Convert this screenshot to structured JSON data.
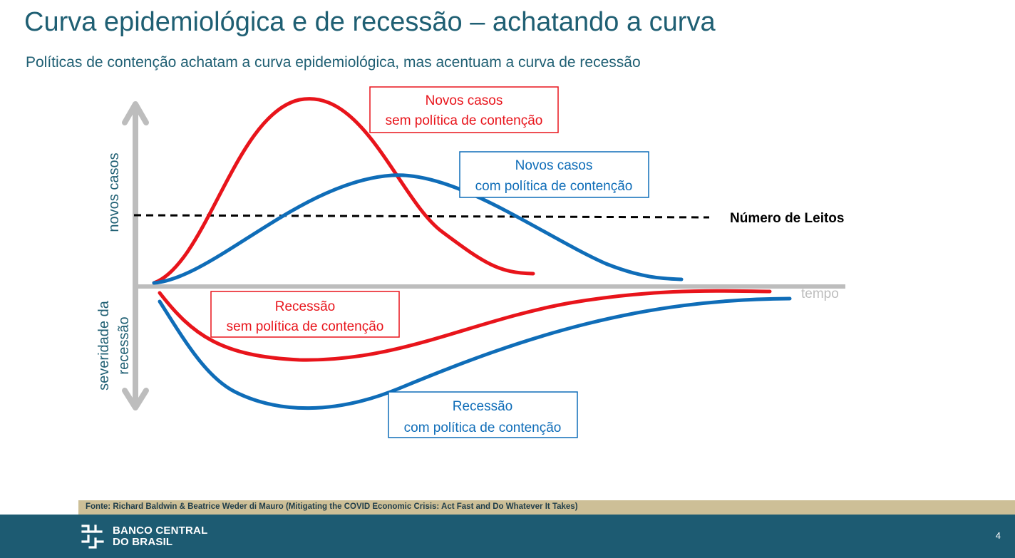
{
  "header": {
    "title": "Curva epidemiológica e de recessão – achatando a curva",
    "subtitle": "Políticas de contenção achatam a curva epidemiológica, mas acentuam a curva de recessão"
  },
  "diagram": {
    "y_axis_upper_label": "novos casos",
    "y_axis_lower_label_line1": "severidade da",
    "y_axis_lower_label_line2": "recessão",
    "x_axis_label": "tempo",
    "threshold_label": "Número de Leitos",
    "box_cases_no_policy": {
      "line1": "Novos casos",
      "line2": "sem política de contenção"
    },
    "box_cases_policy": {
      "line1": "Novos casos",
      "line2": "com política de contenção"
    },
    "box_recession_no_policy": {
      "line1": "Recessão",
      "line2": "sem política de contenção"
    },
    "box_recession_policy": {
      "line1": "Recessão",
      "line2": "com política de contenção"
    },
    "colors": {
      "no_policy": "#e8141b",
      "policy": "#0f6db8",
      "axis": "#bdbdbd",
      "threshold": "#000000",
      "text_primary": "#1f5f73"
    }
  },
  "footer": {
    "source": "Fonte: Richard Baldwin & Beatrice Weder di Mauro (Mitigating the COVID Economic Crisis: Act Fast and Do Whatever It Takes)",
    "logo_line1": "BANCO CENTRAL",
    "logo_line2": "DO BRASIL",
    "page_number": "4",
    "logo_icon": "bcb-logo-icon"
  }
}
